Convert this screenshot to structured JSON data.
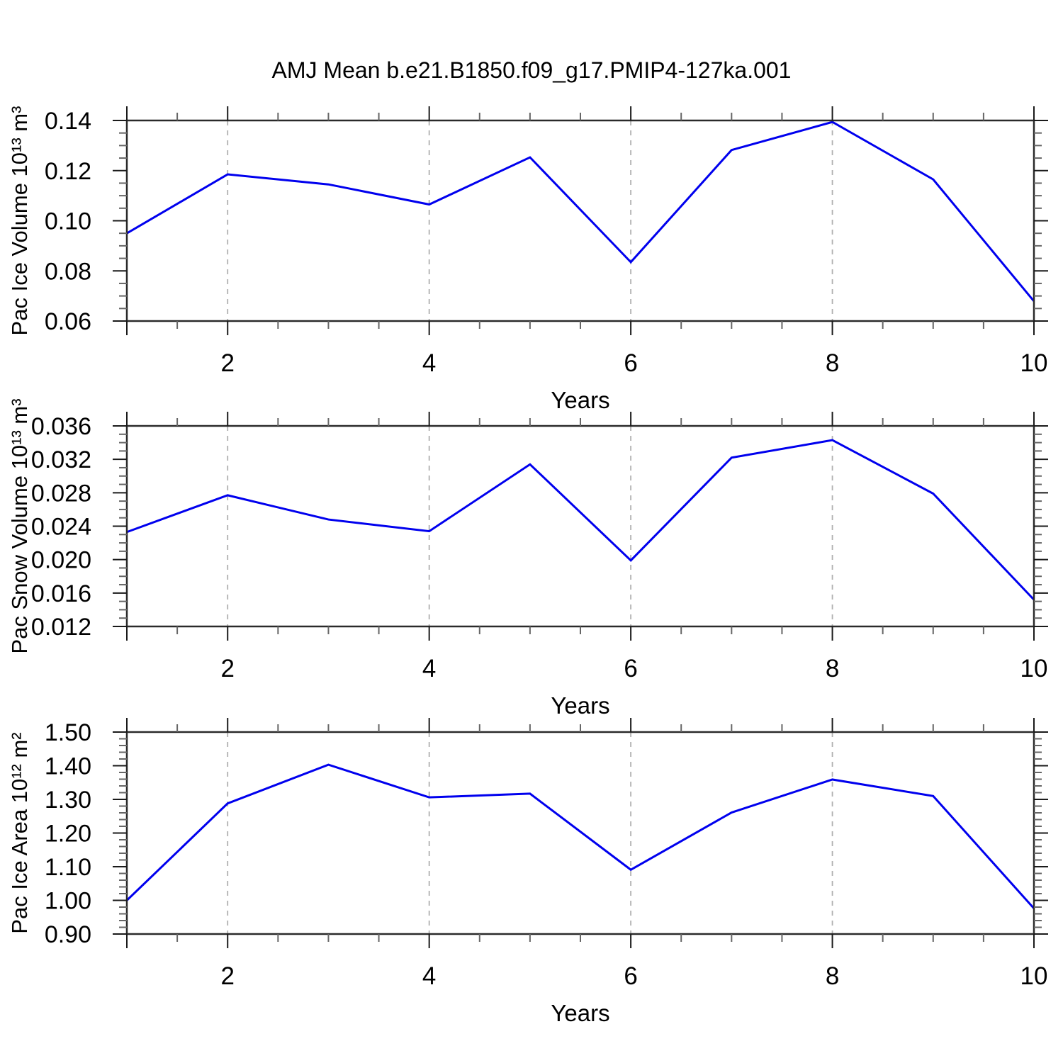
{
  "title": "AMJ Mean b.e21.B1850.f09_g17.PMIP4-127ka.001",
  "line_color": "#0000ee",
  "frame_color": "#2a2a2a",
  "major_tick_color": "#1a1a1a",
  "minor_tick_color": "#666666",
  "grid_color": "#b0b0b0",
  "chart_data": [
    {
      "type": "line",
      "name": "pac-ice-volume",
      "ylabel": "Pac Ice Volume 10¹³ m³",
      "xlabel": "Years",
      "x": [
        1,
        2,
        3,
        4,
        5,
        6,
        7,
        8,
        9,
        10
      ],
      "values": [
        0.095,
        0.1185,
        0.1145,
        0.1065,
        0.1253,
        0.0835,
        0.1282,
        0.1394,
        0.1165,
        0.0679
      ],
      "ylim": [
        0.06,
        0.14
      ],
      "yticks": [
        0.06,
        0.08,
        0.1,
        0.12,
        0.14
      ],
      "ytick_labels": [
        "0.06",
        "0.08",
        "0.10",
        "0.12",
        "0.14"
      ],
      "yminor_ticks": [
        0.065,
        0.07,
        0.075,
        0.085,
        0.09,
        0.095,
        0.105,
        0.11,
        0.115,
        0.125,
        0.13,
        0.135
      ],
      "xlim": [
        1,
        10
      ],
      "xtick_marks": [
        1,
        2,
        4,
        6,
        8,
        10
      ],
      "xticks_labeled": [
        2,
        4,
        6,
        8,
        10
      ],
      "xtick_labels": [
        "2",
        "4",
        "6",
        "8",
        "10"
      ],
      "xminor_ticks": [
        1.5,
        2.5,
        3,
        3.5,
        4.5,
        5,
        5.5,
        6.5,
        7,
        7.5,
        8.5,
        9,
        9.5
      ],
      "grid_x": [
        2,
        4,
        6,
        8
      ],
      "grid_on": true,
      "legend": "none"
    },
    {
      "type": "line",
      "name": "pac-snow-volume",
      "ylabel": "Pac Snow Volume 10¹³ m³",
      "xlabel": "Years",
      "x": [
        1,
        2,
        3,
        4,
        5,
        6,
        7,
        8,
        9,
        10
      ],
      "values": [
        0.0233,
        0.0277,
        0.0248,
        0.0234,
        0.0314,
        0.0199,
        0.0322,
        0.0343,
        0.0279,
        0.0152
      ],
      "ylim": [
        0.012,
        0.036
      ],
      "yticks": [
        0.012,
        0.016,
        0.02,
        0.024,
        0.028,
        0.032,
        0.036
      ],
      "ytick_labels": [
        "0.012",
        "0.016",
        "0.020",
        "0.024",
        "0.028",
        "0.032",
        "0.036"
      ],
      "yminor_ticks": [
        0.013,
        0.014,
        0.015,
        0.017,
        0.018,
        0.019,
        0.021,
        0.022,
        0.023,
        0.025,
        0.026,
        0.027,
        0.029,
        0.03,
        0.031,
        0.033,
        0.034,
        0.035
      ],
      "xlim": [
        1,
        10
      ],
      "xtick_marks": [
        1,
        2,
        4,
        6,
        8,
        10
      ],
      "xticks_labeled": [
        2,
        4,
        6,
        8,
        10
      ],
      "xtick_labels": [
        "2",
        "4",
        "6",
        "8",
        "10"
      ],
      "xminor_ticks": [
        1.5,
        2.5,
        3,
        3.5,
        4.5,
        5,
        5.5,
        6.5,
        7,
        7.5,
        8.5,
        9,
        9.5
      ],
      "grid_x": [
        2,
        4,
        6,
        8
      ],
      "grid_on": true,
      "legend": "none"
    },
    {
      "type": "line",
      "name": "pac-ice-area",
      "ylabel": "Pac Ice Area 10¹² m²",
      "xlabel": "Years",
      "x": [
        1,
        2,
        3,
        4,
        5,
        6,
        7,
        8,
        9,
        10
      ],
      "values": [
        1.0,
        1.288,
        1.403,
        1.306,
        1.317,
        1.091,
        1.261,
        1.359,
        1.31,
        0.976
      ],
      "ylim": [
        0.9,
        1.5
      ],
      "yticks": [
        0.9,
        1.0,
        1.1,
        1.2,
        1.3,
        1.4,
        1.5
      ],
      "ytick_labels": [
        "0.90",
        "1.00",
        "1.10",
        "1.20",
        "1.30",
        "1.40",
        "1.50"
      ],
      "yminor_ticks": [
        0.92,
        0.94,
        0.96,
        0.98,
        1.02,
        1.04,
        1.06,
        1.08,
        1.12,
        1.14,
        1.16,
        1.18,
        1.22,
        1.24,
        1.26,
        1.28,
        1.32,
        1.34,
        1.36,
        1.38,
        1.42,
        1.44,
        1.46,
        1.48
      ],
      "xlim": [
        1,
        10
      ],
      "xtick_marks": [
        1,
        2,
        4,
        6,
        8,
        10
      ],
      "xticks_labeled": [
        2,
        4,
        6,
        8,
        10
      ],
      "xtick_labels": [
        "2",
        "4",
        "6",
        "8",
        "10"
      ],
      "xminor_ticks": [
        1.5,
        2.5,
        3,
        3.5,
        4.5,
        5,
        5.5,
        6.5,
        7,
        7.5,
        8.5,
        9,
        9.5
      ],
      "grid_x": [
        2,
        4,
        6,
        8
      ],
      "grid_on": true,
      "legend": "none"
    }
  ]
}
